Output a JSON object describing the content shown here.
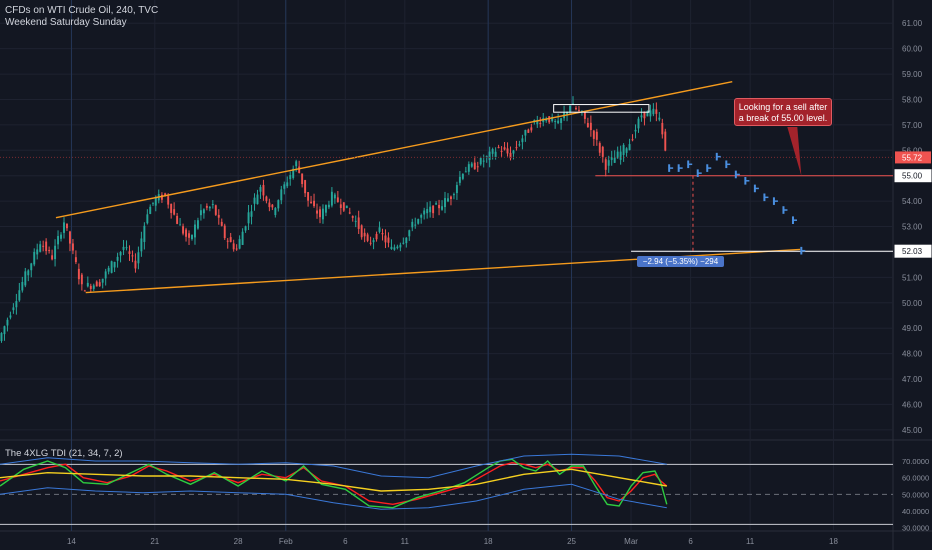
{
  "header": {
    "title": "CFDs on WTI Crude Oil, 240, TVC",
    "subtitle": "Weekend Saturday Sunday"
  },
  "colors": {
    "background": "#131722",
    "up": "#26a69a",
    "down": "#ef5350",
    "trendline": "#f59b1d",
    "projection": "#4a8fe0",
    "level_line": "#ffffff",
    "tdi_red": "#ff2020",
    "tdi_green": "#2ecc40",
    "tdi_yellow": "#f5d020",
    "tdi_blue": "#3a78d8"
  },
  "annotations": {
    "callout": "Looking for a sell after a break of 55.00 level.",
    "measure": "−2.94 (−5.35%) −294"
  },
  "chart_data": [
    {
      "type": "candlestick",
      "title": "CFDs on WTI Crude Oil, 240, TVC",
      "price_axis": {
        "ticks": [
          "61.00",
          "60.00",
          "59.00",
          "58.00",
          "57.00",
          "56.00",
          "55.00",
          "54.00",
          "53.00",
          "52.00",
          "51.00",
          "50.00",
          "49.00",
          "48.00",
          "47.00",
          "46.00",
          "45.00"
        ],
        "range": [
          44.6,
          61.6
        ],
        "price_labels": [
          {
            "value": 55.72,
            "text": "55.72",
            "style": "last"
          },
          {
            "value": 55.0,
            "text": "55.00",
            "style": "level"
          },
          {
            "value": 52.03,
            "text": "52.03",
            "style": "level"
          }
        ]
      },
      "time_axis": {
        "labels": [
          {
            "text": "14",
            "day": 14
          },
          {
            "text": "21",
            "day": 21
          },
          {
            "text": "28",
            "day": 28
          },
          {
            "text": "Feb",
            "day": 32
          },
          {
            "text": "6",
            "day": 37
          },
          {
            "text": "11",
            "day": 42
          },
          {
            "text": "18",
            "day": 49
          },
          {
            "text": "25",
            "day": 56
          },
          {
            "text": "Mar",
            "day": 61
          },
          {
            "text": "6",
            "day": 66
          },
          {
            "text": "11",
            "day": 71
          },
          {
            "text": "18",
            "day": 78
          }
        ],
        "range": [
          8,
          83
        ]
      },
      "anchors": [
        [
          8,
          48.5
        ],
        [
          10,
          50.8
        ],
        [
          11.5,
          52.4
        ],
        [
          12.5,
          51.8
        ],
        [
          13.5,
          53.2
        ],
        [
          14.5,
          51.5
        ],
        [
          15,
          50.6
        ],
        [
          16.5,
          50.8
        ],
        [
          17.5,
          51.5
        ],
        [
          18.5,
          52.2
        ],
        [
          19.5,
          51.5
        ],
        [
          20.5,
          53.6
        ],
        [
          21.2,
          54.1
        ],
        [
          22,
          54.2
        ],
        [
          23,
          53.2
        ],
        [
          24,
          52.4
        ],
        [
          25,
          53.6
        ],
        [
          26,
          53.8
        ],
        [
          27,
          52.6
        ],
        [
          28,
          52.1
        ],
        [
          29,
          53.5
        ],
        [
          30,
          54.6
        ],
        [
          31,
          53.6
        ],
        [
          32,
          54.6
        ],
        [
          33,
          55.5
        ],
        [
          34,
          54.0
        ],
        [
          35,
          53.4
        ],
        [
          36,
          54.2
        ],
        [
          37,
          53.8
        ],
        [
          38,
          53.2
        ],
        [
          39,
          52.3
        ],
        [
          40,
          52.8
        ],
        [
          41,
          52.1
        ],
        [
          42,
          52.5
        ],
        [
          43,
          53.2
        ],
        [
          44,
          53.6
        ],
        [
          45,
          53.8
        ],
        [
          46,
          54.2
        ],
        [
          47,
          55.2
        ],
        [
          48,
          55.4
        ],
        [
          49,
          55.7
        ],
        [
          50,
          56.1
        ],
        [
          51,
          55.8
        ],
        [
          52,
          56.5
        ],
        [
          53,
          57.1
        ],
        [
          54,
          57.3
        ],
        [
          55,
          57.0
        ],
        [
          56,
          57.8
        ],
        [
          57,
          57.4
        ],
        [
          58,
          56.6
        ],
        [
          59,
          55.4
        ],
        [
          60,
          55.8
        ],
        [
          61,
          56.3
        ],
        [
          62,
          57.4
        ],
        [
          63,
          57.5
        ],
        [
          63.5,
          57.2
        ],
        [
          64,
          56.0
        ]
      ],
      "projection": {
        "x": [
          64.2,
          65,
          65.8,
          66.6,
          67.4,
          68.2,
          69,
          69.8,
          70.6,
          71.4,
          72.2,
          73,
          73.8,
          74.6,
          75.3
        ],
        "y": [
          55.3,
          55.3,
          55.45,
          55.1,
          55.3,
          55.75,
          55.45,
          55.05,
          54.8,
          54.5,
          54.15,
          54.0,
          53.65,
          53.25,
          52.05
        ]
      },
      "trendlines": [
        {
          "x": [
            12.7,
            69.5
          ],
          "y": [
            53.35,
            58.7
          ]
        },
        {
          "x": [
            15.2,
            75.2
          ],
          "y": [
            50.4,
            52.1
          ]
        }
      ],
      "horizontal_levels": [
        {
          "value": 55.0,
          "from_day": 58,
          "to_day": 83,
          "color": "red"
        },
        {
          "value": 52.03,
          "from_day": 61,
          "to_day": 83,
          "color": "white"
        }
      ],
      "resistance_box": {
        "x": [
          54.5,
          62.5
        ],
        "y": [
          57.5,
          57.8
        ]
      }
    },
    {
      "type": "line",
      "title": "The 4XLG TDI (21, 34, 7, 2)",
      "y_axis": {
        "ticks": [
          "70.0000",
          "60.0000",
          "50.0000",
          "40.0000",
          "30.0000"
        ],
        "range": [
          28,
          76
        ]
      },
      "series": [
        {
          "color": "red",
          "x": [
            8,
            10,
            12,
            13.5,
            15,
            17,
            19,
            20.5,
            22,
            24,
            26,
            28,
            30,
            32,
            33.5,
            35,
            37,
            39,
            41,
            43,
            45,
            47,
            49,
            50,
            51,
            52,
            53,
            54,
            55,
            56,
            57,
            58,
            59,
            60,
            61,
            62,
            63,
            63.5,
            64
          ],
          "y": [
            58,
            62,
            66,
            68,
            60,
            57,
            61,
            67,
            64,
            58,
            62,
            57,
            62,
            60,
            66,
            58,
            55,
            46,
            44,
            47,
            51,
            55,
            63,
            67,
            69,
            68,
            66,
            68,
            64,
            66,
            66,
            58,
            48,
            46,
            52,
            60,
            62,
            58,
            55
          ]
        },
        {
          "color": "green",
          "x": [
            8,
            10,
            12,
            13.5,
            15,
            17,
            19,
            20.5,
            22,
            24,
            26,
            28,
            30,
            32,
            33.5,
            35,
            37,
            39,
            41,
            43,
            45,
            47,
            49,
            50,
            51,
            52,
            53,
            54,
            55,
            56,
            57,
            58,
            59,
            60,
            61,
            62,
            63,
            63.5,
            64
          ],
          "y": [
            55,
            65,
            70,
            66,
            57,
            56,
            63,
            68,
            62,
            56,
            63,
            55,
            64,
            58,
            67,
            56,
            53,
            43,
            42,
            48,
            52,
            57,
            66,
            70,
            71,
            66,
            64,
            70,
            62,
            67,
            67,
            55,
            44,
            43,
            55,
            63,
            64,
            57,
            44
          ]
        },
        {
          "color": "yellow",
          "x": [
            8,
            12,
            16,
            20,
            24,
            28,
            32,
            36,
            40,
            44,
            48,
            52,
            56,
            60,
            64
          ],
          "y": [
            60,
            63,
            62,
            61,
            61,
            60,
            59,
            56,
            52,
            53,
            56,
            62,
            65,
            60,
            55
          ]
        },
        {
          "color": "blue-upper",
          "x": [
            8,
            12,
            16,
            20,
            24,
            28,
            32,
            36,
            40,
            44,
            48,
            52,
            56,
            60,
            64
          ],
          "y": [
            68,
            72,
            70,
            70,
            69,
            68,
            69,
            67,
            61,
            60,
            67,
            73,
            74,
            73,
            68
          ]
        },
        {
          "color": "blue-lower",
          "x": [
            8,
            12,
            16,
            20,
            24,
            28,
            32,
            36,
            40,
            44,
            48,
            52,
            56,
            60,
            64
          ],
          "y": [
            50,
            54,
            52,
            51,
            52,
            51,
            50,
            45,
            41,
            42,
            46,
            53,
            56,
            47,
            42
          ]
        }
      ]
    }
  ]
}
